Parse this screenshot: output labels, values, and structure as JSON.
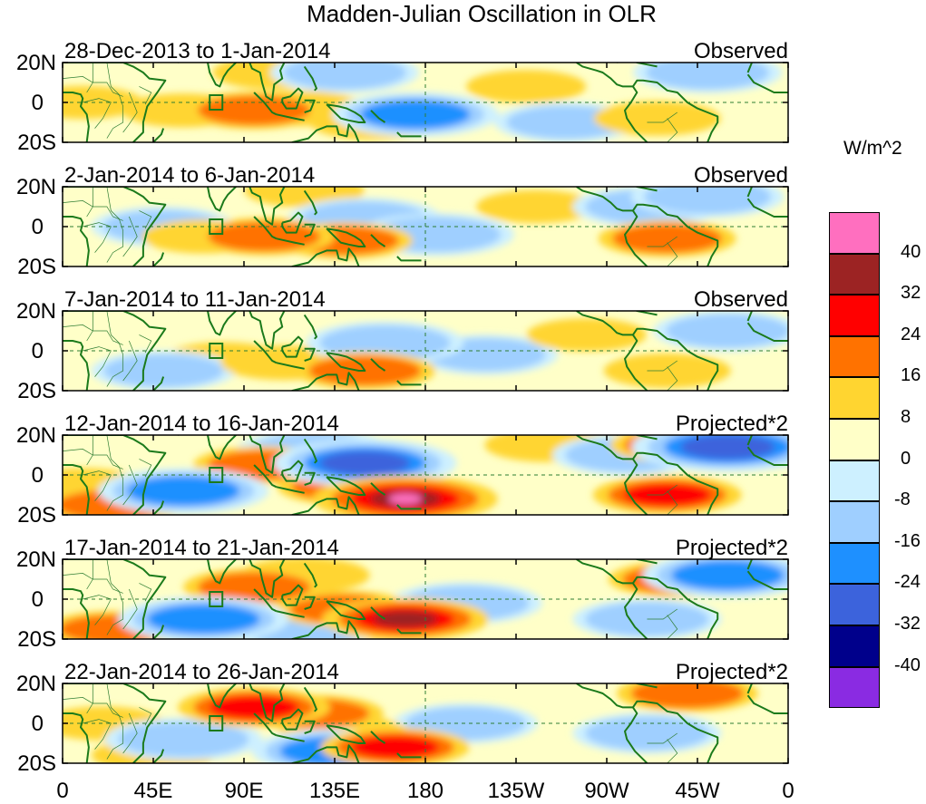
{
  "chart_data": {
    "type": "heatmap",
    "title": "Madden-Julian Oscillation in OLR",
    "units": "W/m^2",
    "x_ticks": [
      "0",
      "45E",
      "90E",
      "135E",
      "180",
      "135W",
      "90W",
      "45W",
      "0"
    ],
    "y_ticks": [
      "20N",
      "0",
      "20S"
    ],
    "colorbar": {
      "levels": [
        "40",
        "32",
        "24",
        "16",
        "8",
        "0",
        "-8",
        "-16",
        "-24",
        "-32",
        "-40"
      ],
      "colors": [
        "#ff6fbf",
        "#9c2323",
        "#ff0000",
        "#ff7200",
        "#ffd530",
        "#ffffc8",
        "#cdf0ff",
        "#9fcfff",
        "#1e90ff",
        "#3c63dc",
        "#00008b",
        "#8a2be2"
      ]
    },
    "panels": [
      {
        "dates": "28-Dec-2013 to 1-Jan-2014",
        "label": "Observed",
        "anomalies": [
          {
            "lon": 95,
            "lat": -4,
            "value": 20
          },
          {
            "lon": 118,
            "lat": -3,
            "value": 14
          },
          {
            "lon": 60,
            "lat": -4,
            "value": 10
          },
          {
            "lon": 105,
            "lat": 15,
            "value": 10
          },
          {
            "lon": 175,
            "lat": -6,
            "value": -18
          },
          {
            "lon": 155,
            "lat": -10,
            "value": 14
          },
          {
            "lon": 10,
            "lat": 0,
            "value": 8
          },
          {
            "lon": 295,
            "lat": -8,
            "value": 12
          },
          {
            "lon": 230,
            "lat": 8,
            "value": 8
          },
          {
            "lon": 140,
            "lat": 15,
            "value": -10
          },
          {
            "lon": 320,
            "lat": 15,
            "value": -10
          },
          {
            "lon": 250,
            "lat": -10,
            "value": -8
          }
        ]
      },
      {
        "dates": "2-Jan-2014 to 6-Jan-2014",
        "label": "Observed",
        "anomalies": [
          {
            "lon": 100,
            "lat": -5,
            "value": 20
          },
          {
            "lon": 140,
            "lat": -7,
            "value": 17
          },
          {
            "lon": 70,
            "lat": -5,
            "value": 10
          },
          {
            "lon": 150,
            "lat": 4,
            "value": -12
          },
          {
            "lon": 185,
            "lat": -4,
            "value": -14
          },
          {
            "lon": 300,
            "lat": -6,
            "value": 18
          },
          {
            "lon": 235,
            "lat": 10,
            "value": 8
          },
          {
            "lon": 290,
            "lat": 10,
            "value": -10
          },
          {
            "lon": 320,
            "lat": 15,
            "value": -12
          },
          {
            "lon": 50,
            "lat": 0,
            "value": -8
          },
          {
            "lon": 120,
            "lat": 18,
            "value": 8
          }
        ]
      },
      {
        "dates": "7-Jan-2014 to 11-Jan-2014",
        "label": "Observed",
        "anomalies": [
          {
            "lon": 150,
            "lat": -10,
            "value": 20
          },
          {
            "lon": 110,
            "lat": -6,
            "value": 12
          },
          {
            "lon": 80,
            "lat": -4,
            "value": 8
          },
          {
            "lon": 160,
            "lat": 4,
            "value": -14
          },
          {
            "lon": 210,
            "lat": -2,
            "value": -8
          },
          {
            "lon": 300,
            "lat": -10,
            "value": 12
          },
          {
            "lon": 50,
            "lat": -10,
            "value": -8
          },
          {
            "lon": 260,
            "lat": 8,
            "value": 8
          },
          {
            "lon": 330,
            "lat": 10,
            "value": -10
          }
        ]
      },
      {
        "dates": "12-Jan-2014 to 16-Jan-2014",
        "label": "Projected*2",
        "anomalies": [
          {
            "lon": 170,
            "lat": -12,
            "value": 44
          },
          {
            "lon": 140,
            "lat": -6,
            "value": 16
          },
          {
            "lon": 25,
            "lat": -15,
            "value": 20
          },
          {
            "lon": 100,
            "lat": 5,
            "value": 20
          },
          {
            "lon": 60,
            "lat": -8,
            "value": -20
          },
          {
            "lon": 150,
            "lat": 6,
            "value": -26
          },
          {
            "lon": 125,
            "lat": 12,
            "value": -14
          },
          {
            "lon": 330,
            "lat": 14,
            "value": -30
          },
          {
            "lon": 300,
            "lat": -10,
            "value": 24
          },
          {
            "lon": 240,
            "lat": 15,
            "value": 10
          },
          {
            "lon": 10,
            "lat": -5,
            "value": 10
          },
          {
            "lon": 280,
            "lat": 10,
            "value": -10
          },
          {
            "lon": 305,
            "lat": 15,
            "value": 16
          }
        ]
      },
      {
        "dates": "17-Jan-2014 to 21-Jan-2014",
        "label": "Projected*2",
        "anomalies": [
          {
            "lon": 170,
            "lat": -10,
            "value": 34
          },
          {
            "lon": 140,
            "lat": -5,
            "value": 18
          },
          {
            "lon": 95,
            "lat": 6,
            "value": 20
          },
          {
            "lon": 120,
            "lat": 12,
            "value": 14
          },
          {
            "lon": 25,
            "lat": -15,
            "value": 16
          },
          {
            "lon": 70,
            "lat": -10,
            "value": -20
          },
          {
            "lon": 200,
            "lat": -2,
            "value": -12
          },
          {
            "lon": 330,
            "lat": 12,
            "value": -20
          },
          {
            "lon": 305,
            "lat": 10,
            "value": 18
          },
          {
            "lon": 290,
            "lat": -10,
            "value": -10
          },
          {
            "lon": 120,
            "lat": -15,
            "value": -10
          }
        ]
      },
      {
        "dates": "22-Jan-2014 to 26-Jan-2014",
        "label": "Projected*2",
        "anomalies": [
          {
            "lon": 95,
            "lat": 8,
            "value": 26
          },
          {
            "lon": 125,
            "lat": 5,
            "value": 18
          },
          {
            "lon": 165,
            "lat": -12,
            "value": 24
          },
          {
            "lon": 140,
            "lat": -5,
            "value": 14
          },
          {
            "lon": 60,
            "lat": -8,
            "value": -14
          },
          {
            "lon": 135,
            "lat": -14,
            "value": -18
          },
          {
            "lon": 45,
            "lat": -16,
            "value": 10
          },
          {
            "lon": 310,
            "lat": 15,
            "value": 20
          },
          {
            "lon": 290,
            "lat": -5,
            "value": -10
          },
          {
            "lon": 200,
            "lat": 0,
            "value": -8
          },
          {
            "lon": 20,
            "lat": 0,
            "value": 10
          }
        ]
      }
    ]
  }
}
